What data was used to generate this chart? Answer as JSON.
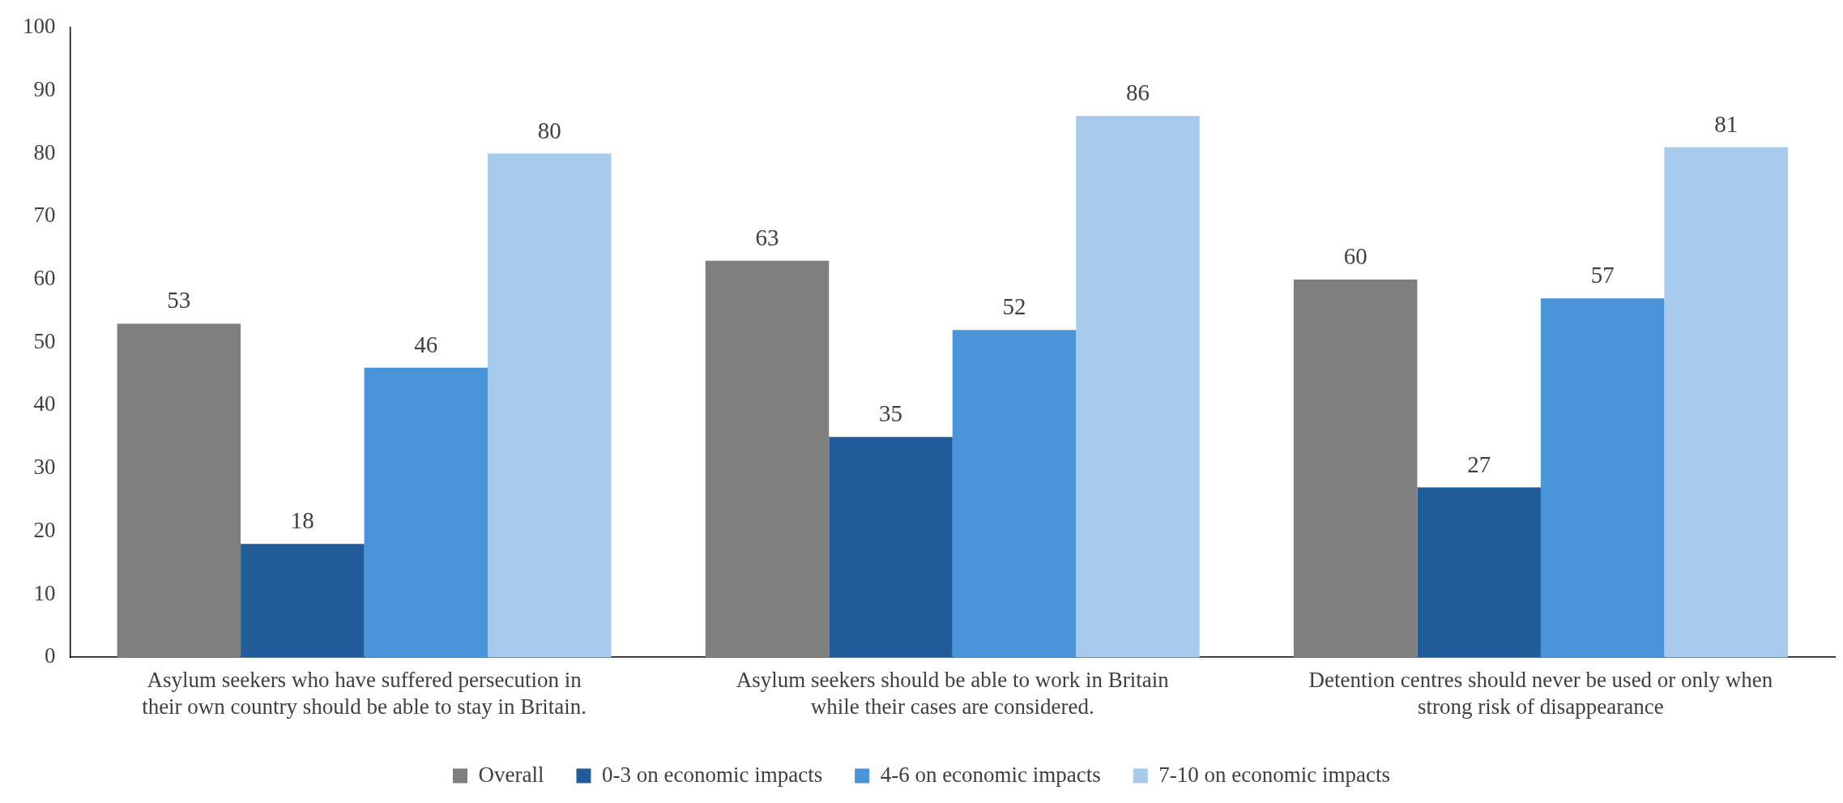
{
  "chart_data": {
    "type": "bar",
    "categories": [
      "Asylum seekers who have suffered persecution in their own country should be able to stay in Britain.",
      "Asylum seekers should be able to work in Britain while their cases are considered.",
      "Detention centres should never be used or only when strong risk of disappearance"
    ],
    "series": [
      {
        "name": "Overall",
        "color": "#7f7f7f",
        "values": [
          53,
          63,
          60
        ]
      },
      {
        "name": "0-3 on economic impacts",
        "color": "#1f5c99",
        "values": [
          18,
          35,
          27
        ]
      },
      {
        "name": "4-6 on economic impacts",
        "color": "#4a94da",
        "values": [
          46,
          52,
          57
        ]
      },
      {
        "name": "7-10 on economic impacts",
        "color": "#a7caec",
        "values": [
          80,
          86,
          81
        ]
      }
    ],
    "ylim": [
      0,
      100
    ],
    "yticks": [
      0,
      10,
      20,
      30,
      40,
      50,
      60,
      70,
      80,
      90,
      100
    ],
    "grid": false,
    "legend": "bottom",
    "data_labels": true
  }
}
